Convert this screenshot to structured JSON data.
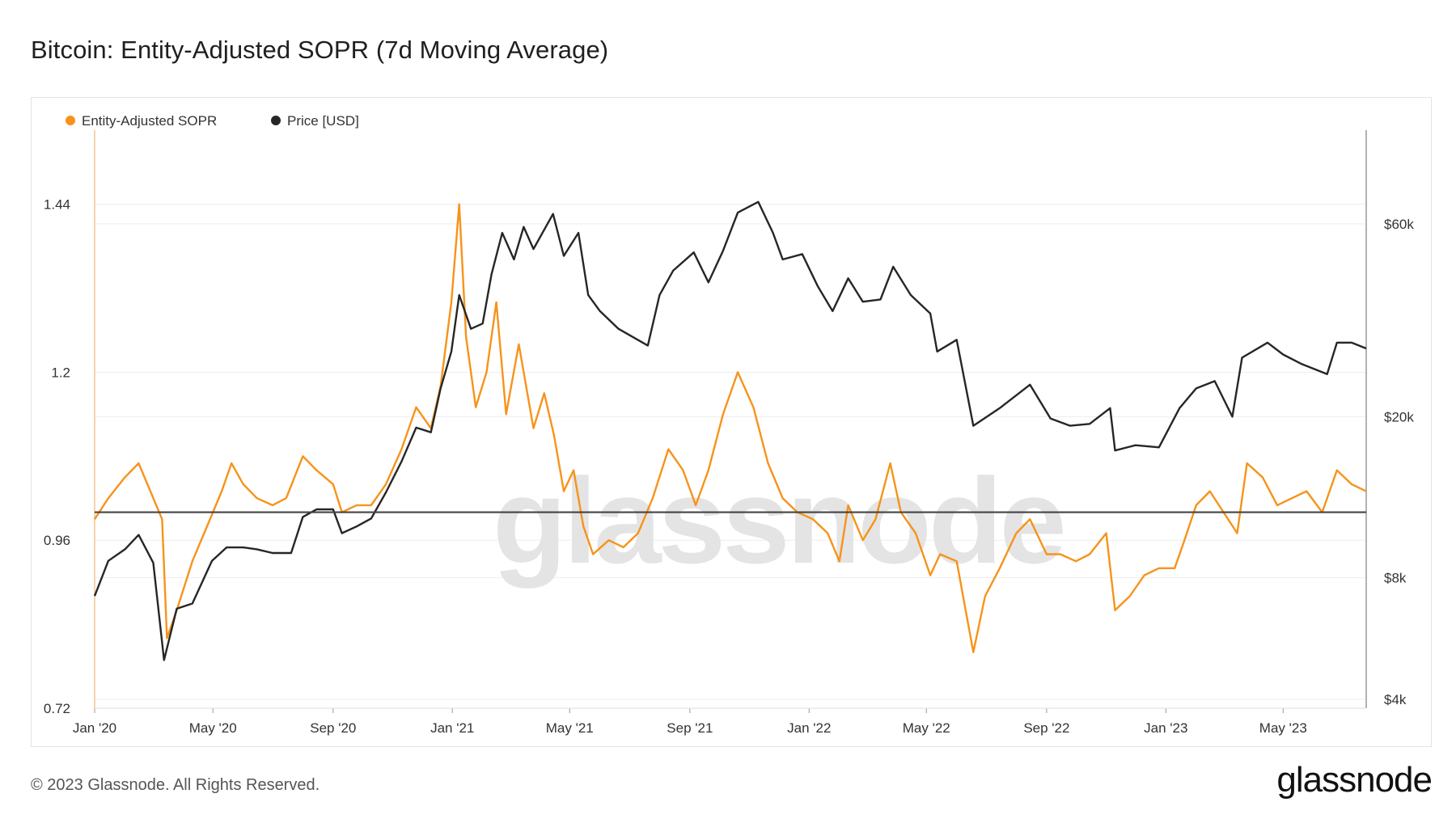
{
  "page": {
    "title": "Bitcoin: Entity-Adjusted SOPR (7d Moving Average)",
    "footer": "© 2023 Glassnode. All Rights Reserved.",
    "logo": "glassnode",
    "watermark": "glassnode"
  },
  "chart_data": {
    "type": "line",
    "title": "Bitcoin: Entity-Adjusted SOPR (7d Moving Average)",
    "x_ticks": [
      "Jan '20",
      "May '20",
      "Sep '20",
      "Jan '21",
      "May '21",
      "Sep '21",
      "Jan '22",
      "May '22",
      "Sep '22",
      "Jan '23",
      "May '23"
    ],
    "x_range": [
      "2020-01-01",
      "2023-07-25"
    ],
    "y_left": {
      "ticks": [
        "1.44",
        "1.2",
        "0.96",
        "0.72"
      ],
      "range": [
        0.72,
        1.54
      ]
    },
    "y_right": {
      "ticks": [
        "$60k",
        "$20k",
        "$8k",
        "$4k"
      ],
      "scale": "log",
      "range": [
        3800,
        100000
      ]
    },
    "reference_line": {
      "axis": "left",
      "value": 1.0,
      "color": "#444444"
    },
    "legend": {
      "position": "top-left"
    },
    "grid": true,
    "series": [
      {
        "name": "Entity-Adjusted SOPR",
        "axis": "left",
        "color": "#f7931a",
        "points": [
          [
            "2020-01-01",
            0.99
          ],
          [
            "2020-01-15",
            1.02
          ],
          [
            "2020-02-01",
            1.05
          ],
          [
            "2020-02-15",
            1.07
          ],
          [
            "2020-03-01",
            1.02
          ],
          [
            "2020-03-10",
            0.99
          ],
          [
            "2020-03-15",
            0.82
          ],
          [
            "2020-03-25",
            0.86
          ],
          [
            "2020-04-10",
            0.93
          ],
          [
            "2020-04-25",
            0.98
          ],
          [
            "2020-05-10",
            1.03
          ],
          [
            "2020-05-20",
            1.07
          ],
          [
            "2020-06-01",
            1.04
          ],
          [
            "2020-06-15",
            1.02
          ],
          [
            "2020-07-01",
            1.01
          ],
          [
            "2020-07-15",
            1.02
          ],
          [
            "2020-08-01",
            1.08
          ],
          [
            "2020-08-15",
            1.06
          ],
          [
            "2020-09-01",
            1.04
          ],
          [
            "2020-09-10",
            1.0
          ],
          [
            "2020-09-25",
            1.01
          ],
          [
            "2020-10-10",
            1.01
          ],
          [
            "2020-10-25",
            1.04
          ],
          [
            "2020-11-10",
            1.09
          ],
          [
            "2020-11-25",
            1.15
          ],
          [
            "2020-12-10",
            1.12
          ],
          [
            "2020-12-20",
            1.18
          ],
          [
            "2020-12-31",
            1.3
          ],
          [
            "2021-01-08",
            1.44
          ],
          [
            "2021-01-15",
            1.25
          ],
          [
            "2021-01-25",
            1.15
          ],
          [
            "2021-02-05",
            1.2
          ],
          [
            "2021-02-15",
            1.3
          ],
          [
            "2021-02-25",
            1.14
          ],
          [
            "2021-03-10",
            1.24
          ],
          [
            "2021-03-25",
            1.12
          ],
          [
            "2021-04-05",
            1.17
          ],
          [
            "2021-04-15",
            1.11
          ],
          [
            "2021-04-25",
            1.03
          ],
          [
            "2021-05-05",
            1.06
          ],
          [
            "2021-05-15",
            0.98
          ],
          [
            "2021-05-25",
            0.94
          ],
          [
            "2021-06-10",
            0.96
          ],
          [
            "2021-06-25",
            0.95
          ],
          [
            "2021-07-10",
            0.97
          ],
          [
            "2021-07-25",
            1.02
          ],
          [
            "2021-08-10",
            1.09
          ],
          [
            "2021-08-25",
            1.06
          ],
          [
            "2021-09-07",
            1.01
          ],
          [
            "2021-09-20",
            1.06
          ],
          [
            "2021-10-05",
            1.14
          ],
          [
            "2021-10-20",
            1.2
          ],
          [
            "2021-11-05",
            1.15
          ],
          [
            "2021-11-20",
            1.07
          ],
          [
            "2021-12-05",
            1.02
          ],
          [
            "2021-12-20",
            1.0
          ],
          [
            "2022-01-05",
            0.99
          ],
          [
            "2022-01-20",
            0.97
          ],
          [
            "2022-02-01",
            0.93
          ],
          [
            "2022-02-10",
            1.01
          ],
          [
            "2022-02-25",
            0.96
          ],
          [
            "2022-03-10",
            0.99
          ],
          [
            "2022-03-25",
            1.07
          ],
          [
            "2022-04-05",
            1.0
          ],
          [
            "2022-04-20",
            0.97
          ],
          [
            "2022-05-05",
            0.91
          ],
          [
            "2022-05-15",
            0.94
          ],
          [
            "2022-06-01",
            0.93
          ],
          [
            "2022-06-18",
            0.8
          ],
          [
            "2022-06-30",
            0.88
          ],
          [
            "2022-07-15",
            0.92
          ],
          [
            "2022-08-01",
            0.97
          ],
          [
            "2022-08-15",
            0.99
          ],
          [
            "2022-09-01",
            0.94
          ],
          [
            "2022-09-15",
            0.94
          ],
          [
            "2022-10-01",
            0.93
          ],
          [
            "2022-10-15",
            0.94
          ],
          [
            "2022-11-01",
            0.97
          ],
          [
            "2022-11-10",
            0.86
          ],
          [
            "2022-11-25",
            0.88
          ],
          [
            "2022-12-10",
            0.91
          ],
          [
            "2022-12-25",
            0.92
          ],
          [
            "2023-01-10",
            0.92
          ],
          [
            "2023-01-20",
            0.96
          ],
          [
            "2023-02-01",
            1.01
          ],
          [
            "2023-02-15",
            1.03
          ],
          [
            "2023-03-01",
            1.0
          ],
          [
            "2023-03-15",
            0.97
          ],
          [
            "2023-03-25",
            1.07
          ],
          [
            "2023-04-10",
            1.05
          ],
          [
            "2023-04-25",
            1.01
          ],
          [
            "2023-05-10",
            1.02
          ],
          [
            "2023-05-25",
            1.03
          ],
          [
            "2023-06-10",
            1.0
          ],
          [
            "2023-06-25",
            1.06
          ],
          [
            "2023-07-10",
            1.04
          ],
          [
            "2023-07-25",
            1.03
          ]
        ]
      },
      {
        "name": "Price [USD]",
        "axis": "right",
        "color": "#262626",
        "points": [
          [
            "2020-01-01",
            7200
          ],
          [
            "2020-01-15",
            8800
          ],
          [
            "2020-02-01",
            9400
          ],
          [
            "2020-02-15",
            10200
          ],
          [
            "2020-03-01",
            8700
          ],
          [
            "2020-03-12",
            5000
          ],
          [
            "2020-03-25",
            6700
          ],
          [
            "2020-04-10",
            6900
          ],
          [
            "2020-04-30",
            8800
          ],
          [
            "2020-05-15",
            9500
          ],
          [
            "2020-06-01",
            9500
          ],
          [
            "2020-06-15",
            9400
          ],
          [
            "2020-07-01",
            9200
          ],
          [
            "2020-07-20",
            9200
          ],
          [
            "2020-08-01",
            11300
          ],
          [
            "2020-08-15",
            11800
          ],
          [
            "2020-09-01",
            11800
          ],
          [
            "2020-09-10",
            10300
          ],
          [
            "2020-09-25",
            10700
          ],
          [
            "2020-10-10",
            11200
          ],
          [
            "2020-10-25",
            13000
          ],
          [
            "2020-11-10",
            15500
          ],
          [
            "2020-11-25",
            18800
          ],
          [
            "2020-12-10",
            18300
          ],
          [
            "2020-12-20",
            23500
          ],
          [
            "2020-12-31",
            29000
          ],
          [
            "2021-01-08",
            40000
          ],
          [
            "2021-01-20",
            33000
          ],
          [
            "2021-02-01",
            34000
          ],
          [
            "2021-02-10",
            45000
          ],
          [
            "2021-02-21",
            57000
          ],
          [
            "2021-03-05",
            49000
          ],
          [
            "2021-03-15",
            59000
          ],
          [
            "2021-03-25",
            52000
          ],
          [
            "2021-04-14",
            63500
          ],
          [
            "2021-04-25",
            50000
          ],
          [
            "2021-05-10",
            57000
          ],
          [
            "2021-05-20",
            40000
          ],
          [
            "2021-06-01",
            36500
          ],
          [
            "2021-06-20",
            33000
          ],
          [
            "2021-07-20",
            30000
          ],
          [
            "2021-08-01",
            40000
          ],
          [
            "2021-08-15",
            46000
          ],
          [
            "2021-09-05",
            51000
          ],
          [
            "2021-09-20",
            43000
          ],
          [
            "2021-10-05",
            51500
          ],
          [
            "2021-10-20",
            64000
          ],
          [
            "2021-11-10",
            68000
          ],
          [
            "2021-11-25",
            57000
          ],
          [
            "2021-12-05",
            49000
          ],
          [
            "2021-12-25",
            50500
          ],
          [
            "2022-01-10",
            42000
          ],
          [
            "2022-01-25",
            36500
          ],
          [
            "2022-02-10",
            44000
          ],
          [
            "2022-02-25",
            38500
          ],
          [
            "2022-03-15",
            39000
          ],
          [
            "2022-03-28",
            47000
          ],
          [
            "2022-04-15",
            40000
          ],
          [
            "2022-05-05",
            36000
          ],
          [
            "2022-05-12",
            29000
          ],
          [
            "2022-06-01",
            31000
          ],
          [
            "2022-06-18",
            19000
          ],
          [
            "2022-07-15",
            21000
          ],
          [
            "2022-08-15",
            24000
          ],
          [
            "2022-09-05",
            19800
          ],
          [
            "2022-09-25",
            19000
          ],
          [
            "2022-10-15",
            19200
          ],
          [
            "2022-11-05",
            21000
          ],
          [
            "2022-11-10",
            16500
          ],
          [
            "2022-12-01",
            17000
          ],
          [
            "2022-12-25",
            16800
          ],
          [
            "2023-01-15",
            21000
          ],
          [
            "2023-02-01",
            23500
          ],
          [
            "2023-02-20",
            24500
          ],
          [
            "2023-03-10",
            20000
          ],
          [
            "2023-03-20",
            28000
          ],
          [
            "2023-04-15",
            30500
          ],
          [
            "2023-05-01",
            28500
          ],
          [
            "2023-05-20",
            27000
          ],
          [
            "2023-06-15",
            25500
          ],
          [
            "2023-06-25",
            30500
          ],
          [
            "2023-07-10",
            30500
          ],
          [
            "2023-07-25",
            29500
          ]
        ]
      }
    ]
  },
  "colors": {
    "sopr": "#f7931a",
    "price": "#262626",
    "grid": "#ededed",
    "axis": "#999999"
  }
}
